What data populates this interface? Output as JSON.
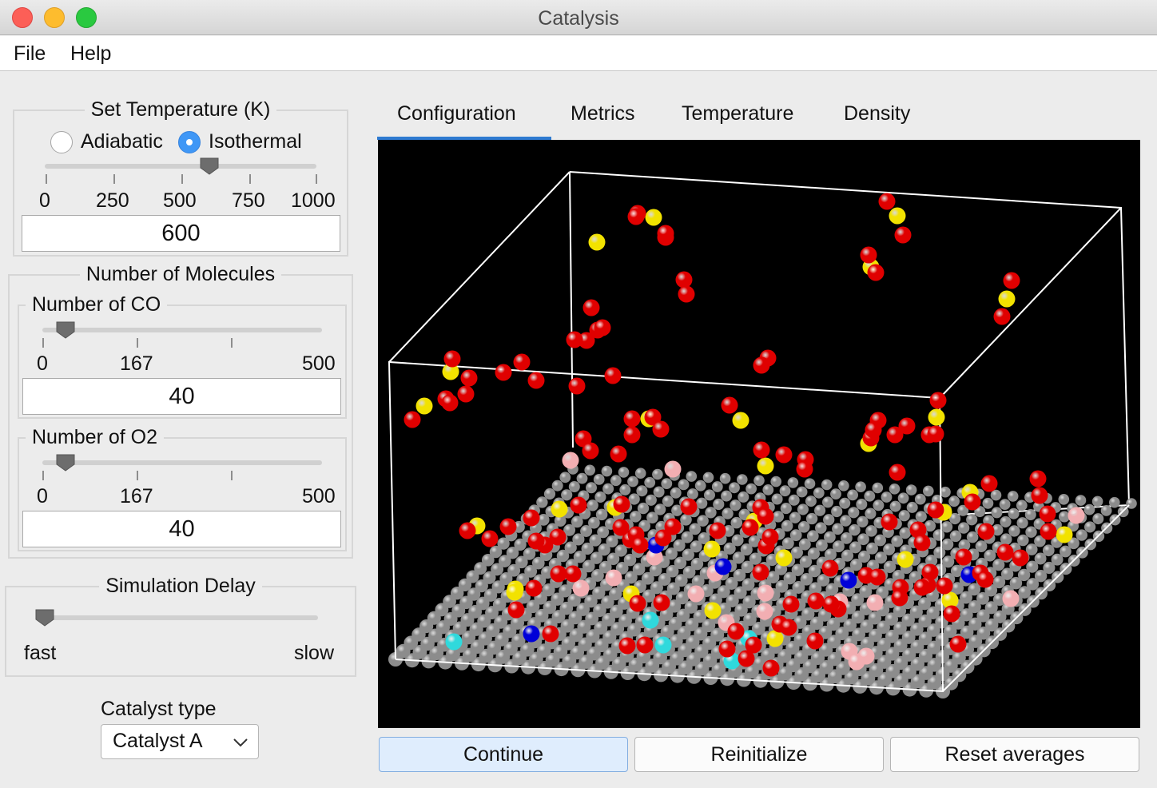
{
  "window": {
    "title": "Catalysis"
  },
  "menu": {
    "file": "File",
    "help": "Help"
  },
  "temperature": {
    "group_title": "Set Temperature (K)",
    "modes": [
      "Adiabatic",
      "Isothermal"
    ],
    "selected_mode": "Isothermal",
    "ticks": [
      "0",
      "250",
      "500",
      "750",
      "1000"
    ],
    "value": "600",
    "slider_level": 0.6
  },
  "molecules": {
    "group_title": "Number of Molecules",
    "co": {
      "title": "Number of CO",
      "ticks": [
        "0",
        "167",
        "500"
      ],
      "value": "40",
      "slider_level": 0.08
    },
    "o2": {
      "title": "Number of O2",
      "ticks": [
        "0",
        "167",
        "500"
      ],
      "value": "40",
      "slider_level": 0.08
    }
  },
  "delay": {
    "group_title": "Simulation Delay",
    "min_label": "fast",
    "max_label": "slow",
    "slider_level": 0.0
  },
  "catalyst": {
    "label": "Catalyst type",
    "selected": "Catalyst A"
  },
  "tabs": [
    "Configuration",
    "Metrics",
    "Temperature",
    "Density"
  ],
  "active_tab": "Configuration",
  "buttons": {
    "continue": "Continue",
    "reinitialize": "Reinitialize",
    "reset": "Reset averages"
  },
  "colors": {
    "surface_atom": "#8c8c8c",
    "oxygen": "#e00000",
    "carbon": "#f2e200",
    "bound_oxygen": "#f2aeb2",
    "bound_carbon": "#2fd9dc",
    "catalyst_site": "#0000d8",
    "tab_underline": "#2e7ad1"
  }
}
